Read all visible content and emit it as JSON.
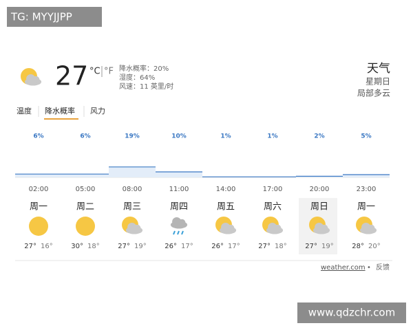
{
  "watermark_top": "TG: MYYJJPP",
  "current": {
    "temp": "27",
    "unit_c": "°C",
    "unit_f": "°F",
    "details": [
      "降水概率：20%",
      "湿度：64%",
      "风速：11 英里/时"
    ]
  },
  "summary": {
    "title": "天气",
    "day": "星期日",
    "condition": "局部多云"
  },
  "tabs": [
    "温度",
    "降水概率",
    "风力"
  ],
  "precipitation": {
    "values": [
      6,
      6,
      19,
      10,
      1,
      1,
      2,
      5
    ],
    "value_labels": [
      "6%",
      "6%",
      "19%",
      "10%",
      "1%",
      "1%",
      "2%",
      "5%"
    ]
  },
  "forecast": {
    "times": [
      "02:00",
      "05:00",
      "08:00",
      "11:00",
      "14:00",
      "17:00",
      "20:00",
      "23:00"
    ],
    "days": [
      {
        "day": "周一",
        "high": "27°",
        "low": "16°"
      },
      {
        "day": "周二",
        "high": "30°",
        "low": "18°"
      },
      {
        "day": "周三",
        "high": "27°",
        "low": "19°"
      },
      {
        "day": "周四",
        "high": "26°",
        "low": "17°"
      },
      {
        "day": "周五",
        "high": "26°",
        "low": "17°"
      },
      {
        "day": "周六",
        "high": "27°",
        "low": "18°"
      },
      {
        "day": "周日",
        "high": "27°",
        "low": "19°"
      },
      {
        "day": "周一",
        "high": "28°",
        "low": "20°"
      }
    ]
  },
  "footer": {
    "source": "weather.com",
    "separator": "•",
    "feedback": "反馈"
  },
  "watermark_bottom": "www.qdzchr.com"
}
